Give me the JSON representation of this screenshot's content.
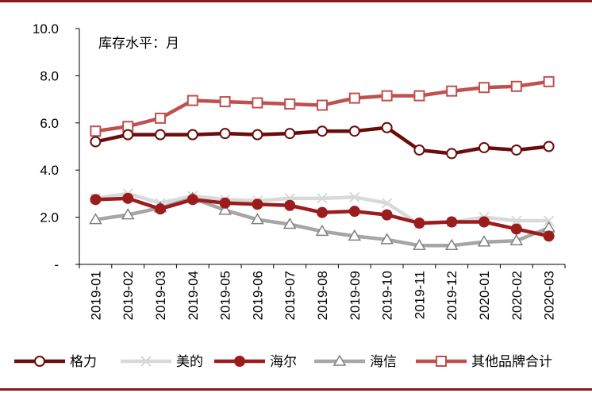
{
  "chart_data": {
    "type": "line",
    "annotation": "库存水平：月",
    "categories": [
      "2019-01",
      "2019-02",
      "2019-03",
      "2019-04",
      "2019-05",
      "2019-06",
      "2019-07",
      "2019-08",
      "2019-09",
      "2019-10",
      "2019-11",
      "2019-12",
      "2020-01",
      "2020-02",
      "2020-03"
    ],
    "ylim": [
      0,
      10
    ],
    "yticks": [
      0,
      2,
      4,
      6,
      8,
      10
    ],
    "ytick_labels": [
      "-",
      "2.0",
      "4.0",
      "6.0",
      "8.0",
      "10.0"
    ],
    "grid": false,
    "legend_position": "bottom",
    "series": [
      {
        "name": "格力",
        "values": [
          5.2,
          5.5,
          5.5,
          5.5,
          5.55,
          5.5,
          5.55,
          5.65,
          5.65,
          5.8,
          4.85,
          4.7,
          4.95,
          4.85,
          5.0
        ],
        "color": "#6b0b0b",
        "marker": "circle-open"
      },
      {
        "name": "美的",
        "values": [
          2.8,
          3.0,
          2.6,
          2.9,
          2.75,
          2.7,
          2.8,
          2.8,
          2.85,
          2.6,
          1.7,
          1.8,
          2.0,
          1.85,
          1.85
        ],
        "color": "#d9d9d9",
        "marker": "x"
      },
      {
        "name": "海尔",
        "values": [
          2.75,
          2.8,
          2.35,
          2.75,
          2.6,
          2.55,
          2.5,
          2.2,
          2.25,
          2.1,
          1.75,
          1.8,
          1.8,
          1.5,
          1.2
        ],
        "color": "#9b1c1c",
        "marker": "circle-filled"
      },
      {
        "name": "海信",
        "values": [
          1.9,
          2.1,
          2.4,
          2.8,
          2.3,
          1.9,
          1.7,
          1.4,
          1.2,
          1.05,
          0.8,
          0.8,
          0.95,
          1.0,
          1.55
        ],
        "color": "#a6a6a6",
        "marker": "triangle-open"
      },
      {
        "name": "其他品牌合计",
        "values": [
          5.65,
          5.85,
          6.2,
          6.95,
          6.9,
          6.85,
          6.8,
          6.75,
          7.05,
          7.15,
          7.15,
          7.35,
          7.5,
          7.55,
          7.75
        ],
        "color": "#c0504d",
        "marker": "square-open"
      }
    ]
  }
}
